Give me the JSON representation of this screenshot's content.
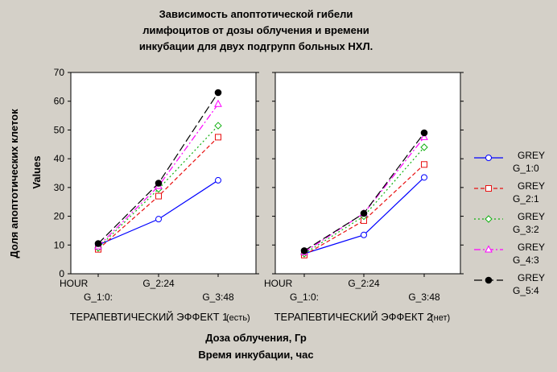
{
  "chart_data": {
    "type": "line",
    "title_lines": [
      "Зависимость апоптотической гибели",
      "лимфоцитов от дозы облучения и времени",
      "инкубации для двух подгрупп больных НХЛ."
    ],
    "ylabel_outer": "Доля апоптотических клеток",
    "ylabel_inner": "Values",
    "xlabel_lines": [
      "Доза облучения, Гр",
      "Время инкубации, час"
    ],
    "x_axis_prefix": "HOUR",
    "categories": [
      "G_1:0:",
      "G_2:24",
      "G_3:48"
    ],
    "ylim": [
      0,
      70
    ],
    "yticks": [
      0,
      10,
      20,
      30,
      40,
      50,
      60,
      70
    ],
    "grid": false,
    "legend_position": "right",
    "panels": [
      {
        "title": "ТЕРАПЕВТИЧЕСКИЙ ЭФФЕКТ 1",
        "title_suffix": "(есть)",
        "series": [
          {
            "name": "GREY G_1:0",
            "values": [
              10,
              19,
              32.5
            ]
          },
          {
            "name": "GREY G_2:1",
            "values": [
              8.5,
              27,
              47.5
            ]
          },
          {
            "name": "GREY G_3:2",
            "values": [
              9,
              29.5,
              51.5
            ]
          },
          {
            "name": "GREY G_4:3",
            "values": [
              9.5,
              30.5,
              59
            ]
          },
          {
            "name": "GREY G_5:4",
            "values": [
              10.5,
              31.5,
              63
            ]
          }
        ]
      },
      {
        "title": "ТЕРАПЕВТИЧЕСКИЙ ЭФФЕКТ 2",
        "title_suffix": "(нет)",
        "series": [
          {
            "name": "GREY G_1:0",
            "values": [
              7,
              13.5,
              33.5
            ]
          },
          {
            "name": "GREY G_2:1",
            "values": [
              6.5,
              18.5,
              38
            ]
          },
          {
            "name": "GREY G_3:2",
            "values": [
              7,
              20,
              44
            ]
          },
          {
            "name": "GREY G_4:3",
            "values": [
              7.5,
              21,
              47.5
            ]
          },
          {
            "name": "GREY G_5:4",
            "values": [
              8,
              21,
              49
            ]
          }
        ]
      }
    ],
    "legend": [
      {
        "line1": "GREY",
        "line2": "G_1:0",
        "color": "#0000ff",
        "dash": "solid",
        "marker": "circle"
      },
      {
        "line1": "GREY",
        "line2": "G_2:1",
        "color": "#e81010",
        "dash": "dashed",
        "marker": "square"
      },
      {
        "line1": "GREY",
        "line2": "G_3:2",
        "color": "#10b010",
        "dash": "dotted",
        "marker": "diamond"
      },
      {
        "line1": "GREY",
        "line2": "G_4:3",
        "color": "#ff00ff",
        "dash": "dashdot",
        "marker": "triangle"
      },
      {
        "line1": "GREY",
        "line2": "G_5:4",
        "color": "#000000",
        "dash": "longdash",
        "marker": "dot"
      }
    ],
    "colors": {
      "background": "#d4d0c8",
      "plot_background": "#ffffff"
    }
  }
}
